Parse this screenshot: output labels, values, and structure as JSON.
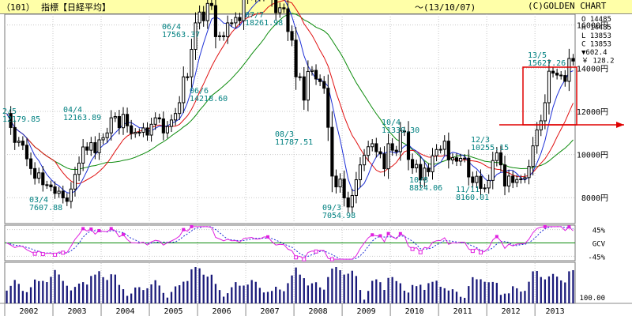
{
  "header": {
    "code": "（101）",
    "title": "指標【日経平均】",
    "period": "～(13/10/07)",
    "brand": "(C)GOLDEN CHART"
  },
  "ohlc_box": {
    "open": "O 14485",
    "high": "H 14485",
    "low": "L 13853",
    "close": "C 13853",
    "change": "▼602.4",
    "yen": "￥ 128.2"
  },
  "price_axis": [
    "16000円",
    "14000円",
    "12000円",
    "10000円",
    "8000円"
  ],
  "osc_axis": [
    "45%",
    "GCV",
    "-45%"
  ],
  "vol_axis": [
    "100.00"
  ],
  "x_axis": [
    "2002",
    "2003",
    "2004",
    "2005",
    "2006",
    "2007",
    "2008",
    "2009",
    "2010",
    "2011",
    "2012",
    "2013"
  ],
  "colors": {
    "candle": "#000000",
    "ma_short": "#1d2fd6",
    "ma_mid": "#e01010",
    "ma_long": "#0a8a0a",
    "osc_main": "#e020e0",
    "osc_signal": "#1d2fd6",
    "annot": "#008080",
    "volume": "#1a1a7a",
    "highlight": "#e00000"
  },
  "chart_data": {
    "type": "line",
    "title": "指標【日経平均】",
    "xlabel": "",
    "ylabel": "",
    "ylim": [
      6800,
      16500
    ],
    "price_ticks": [
      8000,
      10000,
      12000,
      14000,
      16000
    ],
    "x_years": [
      "2002",
      "2003",
      "2004",
      "2005",
      "2006",
      "2007",
      "2008",
      "2009",
      "2010",
      "2011",
      "2012",
      "2013"
    ],
    "monthly_close": [
      11900,
      11250,
      10560,
      10620,
      10430,
      9800,
      9350,
      8900,
      9150,
      8600,
      8590,
      8500,
      8200,
      8300,
      7990,
      7830,
      8400,
      9080,
      9600,
      10350,
      10200,
      10550,
      10080,
      10680,
      10780,
      11000,
      11700,
      11760,
      11240,
      11860,
      11330,
      10970,
      11030,
      11030,
      11230,
      10900,
      11400,
      11700,
      11650,
      11000,
      11300,
      11600,
      11900,
      12400,
      13600,
      13600,
      14870,
      16100,
      16600,
      16200,
      17000,
      16900,
      15460,
      15500,
      15460,
      16100,
      16100,
      16350,
      16200,
      17200,
      17380,
      17600,
      17300,
      17400,
      17880,
      18140,
      17250,
      16570,
      16800,
      16750,
      15700,
      15300,
      13600,
      13600,
      12520,
      13850,
      13900,
      13500,
      13380,
      13070,
      11260,
      9000,
      8500,
      8860,
      7990,
      7570,
      8100,
      8830,
      9520,
      9960,
      10360,
      10500,
      10130,
      10030,
      9340,
      10500,
      10200,
      10130,
      11090,
      11050,
      9770,
      9380,
      9540,
      8820,
      9370,
      9200,
      9940,
      10230,
      10240,
      10620,
      9750,
      9850,
      9690,
      9820,
      9830,
      8960,
      8700,
      8990,
      8430,
      8450,
      8800,
      9720,
      10080,
      9520,
      8540,
      9000,
      8700,
      8840,
      8870,
      8930,
      9450,
      10400,
      11140,
      11560,
      12400,
      13860,
      13770,
      13680,
      13660,
      13390,
      14450,
      14330
    ],
    "series": [
      {
        "name": "",
        "role": "moving-average-short"
      },
      {
        "name": "",
        "role": "moving-average-mid"
      },
      {
        "name": "",
        "role": "moving-average-long"
      }
    ],
    "annotations": [
      {
        "date": "2/5",
        "value": "12179.85"
      },
      {
        "date": "03/4",
        "value": "7607.88"
      },
      {
        "date": "04/4",
        "value": "12163.89"
      },
      {
        "date": "06/4",
        "value": "17563.37"
      },
      {
        "date": "06/6",
        "value": "14218.60"
      },
      {
        "date": "07/7",
        "value": "18261.98"
      },
      {
        "date": "08/3",
        "value": "11787.51"
      },
      {
        "date": "09/3",
        "value": "7054.98"
      },
      {
        "date": "10/4",
        "value": "11339.30"
      },
      {
        "date": "10/8",
        "value": "8824.06"
      },
      {
        "date": "11/11",
        "value": "8160.01"
      },
      {
        "date": "12/3",
        "value": "10255.15"
      },
      {
        "date": "13/5",
        "value": "15627.26"
      }
    ],
    "oscillator": {
      "ticks": [
        "45%",
        "GCV",
        "-45%"
      ],
      "range": [
        -60,
        60
      ]
    },
    "volume": {
      "tick": "100.00"
    },
    "grid": true
  }
}
